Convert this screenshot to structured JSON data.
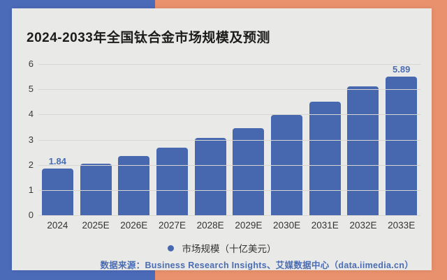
{
  "page": {
    "title": "2024-2033年全国钛合金市场规模及预测",
    "footer": "数据来源：Business Research Insights、艾媒数据中心（data.iimedia.cn）"
  },
  "chart_data": {
    "type": "bar",
    "title": "2024-2033年全国钛合金市场规模及预测",
    "categories": [
      "2024",
      "2025E",
      "2026E",
      "2027E",
      "2028E",
      "2029E",
      "2030E",
      "2031E",
      "2032E",
      "2033E"
    ],
    "values": [
      1.84,
      2.06,
      2.36,
      2.67,
      3.06,
      3.46,
      3.97,
      4.5,
      5.12,
      5.89
    ],
    "value_labels": {
      "0": "1.84",
      "9": "5.89"
    },
    "legend": [
      "市场规模（十亿美元）"
    ],
    "legend_position": "bottom",
    "xlabel": "",
    "ylabel": "",
    "ylim": [
      0,
      6
    ],
    "yticks": [
      0,
      1,
      2,
      3,
      4,
      5,
      6
    ],
    "grid": true
  },
  "colors": {
    "bg_left_blue": "#4b6ab8",
    "bg_right_orange": "#e9916c",
    "card_bg": "#e9e9e7",
    "bar_blue": "#4767af",
    "accent_text_blue": "#4a6cb3",
    "gridline": "#d7d6d3",
    "title_text": "#1c1c1c",
    "axis_text": "#333333"
  }
}
